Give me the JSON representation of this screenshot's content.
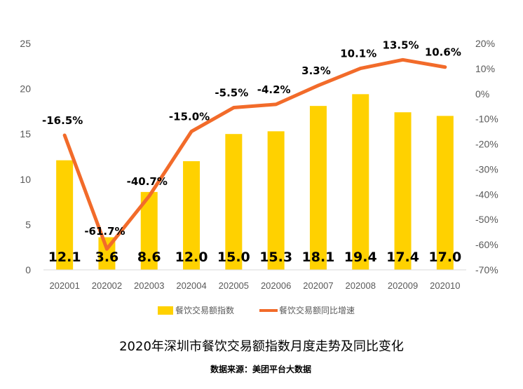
{
  "chart_data": {
    "type": "bar+line",
    "categories": [
      "202001",
      "202002",
      "202003",
      "202004",
      "202005",
      "202006",
      "202007",
      "202008",
      "202009",
      "202010"
    ],
    "series": [
      {
        "name": "餐饮交易额指数",
        "type": "bar",
        "axis": "left",
        "color": "#FFD100",
        "values": [
          12.1,
          3.6,
          8.6,
          12.0,
          15.0,
          15.3,
          18.1,
          19.4,
          17.4,
          17.0
        ],
        "labels": [
          "12.1",
          "3.6",
          "8.6",
          "12.0",
          "15.0",
          "15.3",
          "18.1",
          "19.4",
          "17.4",
          "17.0"
        ]
      },
      {
        "name": "餐饮交易额同比增速",
        "type": "line",
        "axis": "right",
        "color": "#F26B2A",
        "values": [
          -16.5,
          -61.7,
          -40.7,
          -15.0,
          -5.5,
          -4.2,
          3.3,
          10.1,
          13.5,
          10.6
        ],
        "labels": [
          "-16.5%",
          "-61.7%",
          "-40.7%",
          "-15.0%",
          "-5.5%",
          "-4.2%",
          "3.3%",
          "10.1%",
          "13.5%",
          "10.6%"
        ]
      }
    ],
    "y_left": {
      "min": 0,
      "max": 25,
      "ticks": [
        "0",
        "5",
        "10",
        "15",
        "20",
        "25"
      ]
    },
    "y_right": {
      "min": -70,
      "max": 20,
      "ticks": [
        "-70%",
        "-60%",
        "-50%",
        "-40%",
        "-30%",
        "-20%",
        "-10%",
        "0%",
        "10%",
        "20%"
      ]
    },
    "grid": false,
    "legend_position": "bottom",
    "title": "2020年深圳市餐饮交易额指数月度走势及同比变化",
    "source": "数据来源：美团平台大数据"
  }
}
